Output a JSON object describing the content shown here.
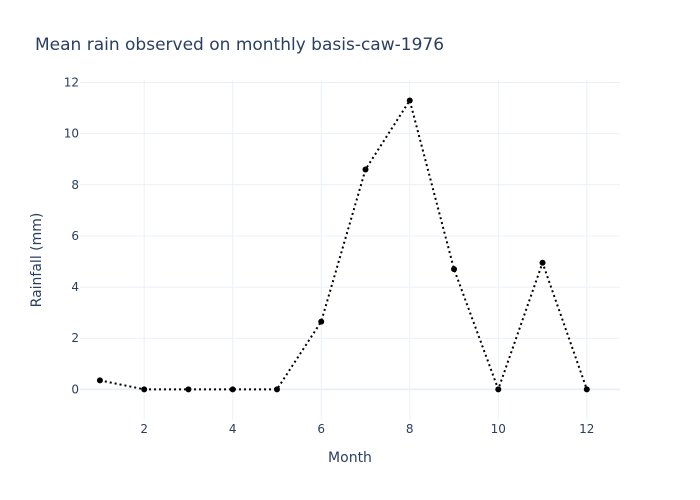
{
  "chart_data": {
    "type": "line",
    "title": "Mean rain observed on monthly basis-caw-1976",
    "xlabel": "Month",
    "ylabel": "Rainfall (mm)",
    "x": [
      1,
      2,
      3,
      4,
      5,
      6,
      7,
      8,
      9,
      10,
      11,
      12
    ],
    "series": [
      {
        "values": [
          0.35,
          0.0,
          0.0,
          0.0,
          0.0,
          2.65,
          8.6,
          11.3,
          4.7,
          0.0,
          4.95,
          0.0
        ]
      }
    ],
    "xlim": [
      0.55,
      12.75
    ],
    "ylim": [
      -1.2,
      12.1
    ],
    "xticks": [
      2,
      4,
      6,
      8,
      10,
      12
    ],
    "yticks": [
      0,
      2,
      4,
      6,
      8,
      10,
      12
    ],
    "line_style": "dotted",
    "line_color": "#000000",
    "marker_color": "#000000",
    "grid": true,
    "legend": "none"
  }
}
